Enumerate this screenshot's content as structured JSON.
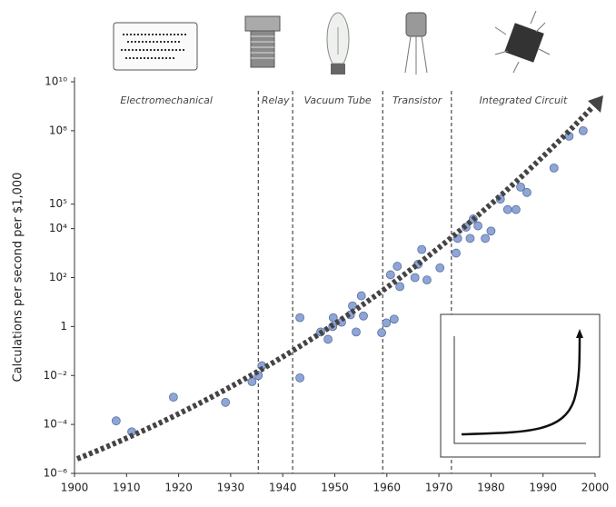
{
  "chart_data": {
    "type": "scatter",
    "ylabel": "Calculations per second per $1,000",
    "x": [
      1908,
      1911,
      1919,
      1929,
      1934.1,
      1935.3,
      1936,
      1943.3,
      1943.3,
      1947.3,
      1948.7,
      1949.6,
      1949.7,
      1951.3,
      1953,
      1953.4,
      1954.1,
      1955.1,
      1955.5,
      1959,
      1959.9,
      1960.7,
      1961.4,
      1962,
      1962.5,
      1965.4,
      1966,
      1966.7,
      1967.7,
      1970.2,
      1973.3,
      1973.6,
      1975.2,
      1976,
      1976.6,
      1977.5,
      1978.9,
      1980,
      1981.8,
      1983.2,
      1984.8,
      1985.7,
      1986.9,
      1992.1,
      1995,
      1997.7
    ],
    "values": [
      0.00014,
      5e-05,
      0.0013,
      0.0008,
      0.0056,
      0.01,
      0.025,
      0.008,
      2.3,
      0.6,
      0.3,
      1,
      2.3,
      1.5,
      3,
      7,
      0.6,
      18,
      2.7,
      0.56,
      1.4,
      130,
      2,
      290,
      43,
      100,
      350,
      1400,
      80,
      250,
      1000,
      4000,
      11500,
      4000,
      25000,
      13000,
      4000,
      8000,
      160000,
      60000,
      60000,
      500000,
      300000,
      3000000,
      60000000,
      100000000
    ],
    "color": "#8ea5d6",
    "xlim": [
      1900,
      2000
    ],
    "xticks": [
      1900,
      1910,
      1920,
      1930,
      1940,
      1950,
      1960,
      1970,
      1980,
      1990,
      2000
    ],
    "ylim": [
      1e-06,
      10000000000
    ],
    "log_y": true,
    "yticks": [
      {
        "value": 1e-06,
        "label": "10⁻⁶"
      },
      {
        "value": 0.0001,
        "label": "10⁻⁴"
      },
      {
        "value": 0.01,
        "label": "10⁻²"
      },
      1,
      {
        "value": 100,
        "label": "10²"
      },
      {
        "value": 10000,
        "label": "10⁴"
      },
      {
        "value": 100000,
        "label": "10⁵"
      },
      {
        "value": 100000000,
        "label": "10⁸"
      },
      {
        "value": 10000000000,
        "label": "10¹⁰"
      }
    ],
    "era_boundaries": [
      1935.3,
      1941.9,
      1959.2,
      1972.4
    ],
    "eras": [
      "Electromechanical",
      "Relay",
      "Vacuum Tube",
      "Transistor",
      "Integrated Circuit"
    ]
  }
}
